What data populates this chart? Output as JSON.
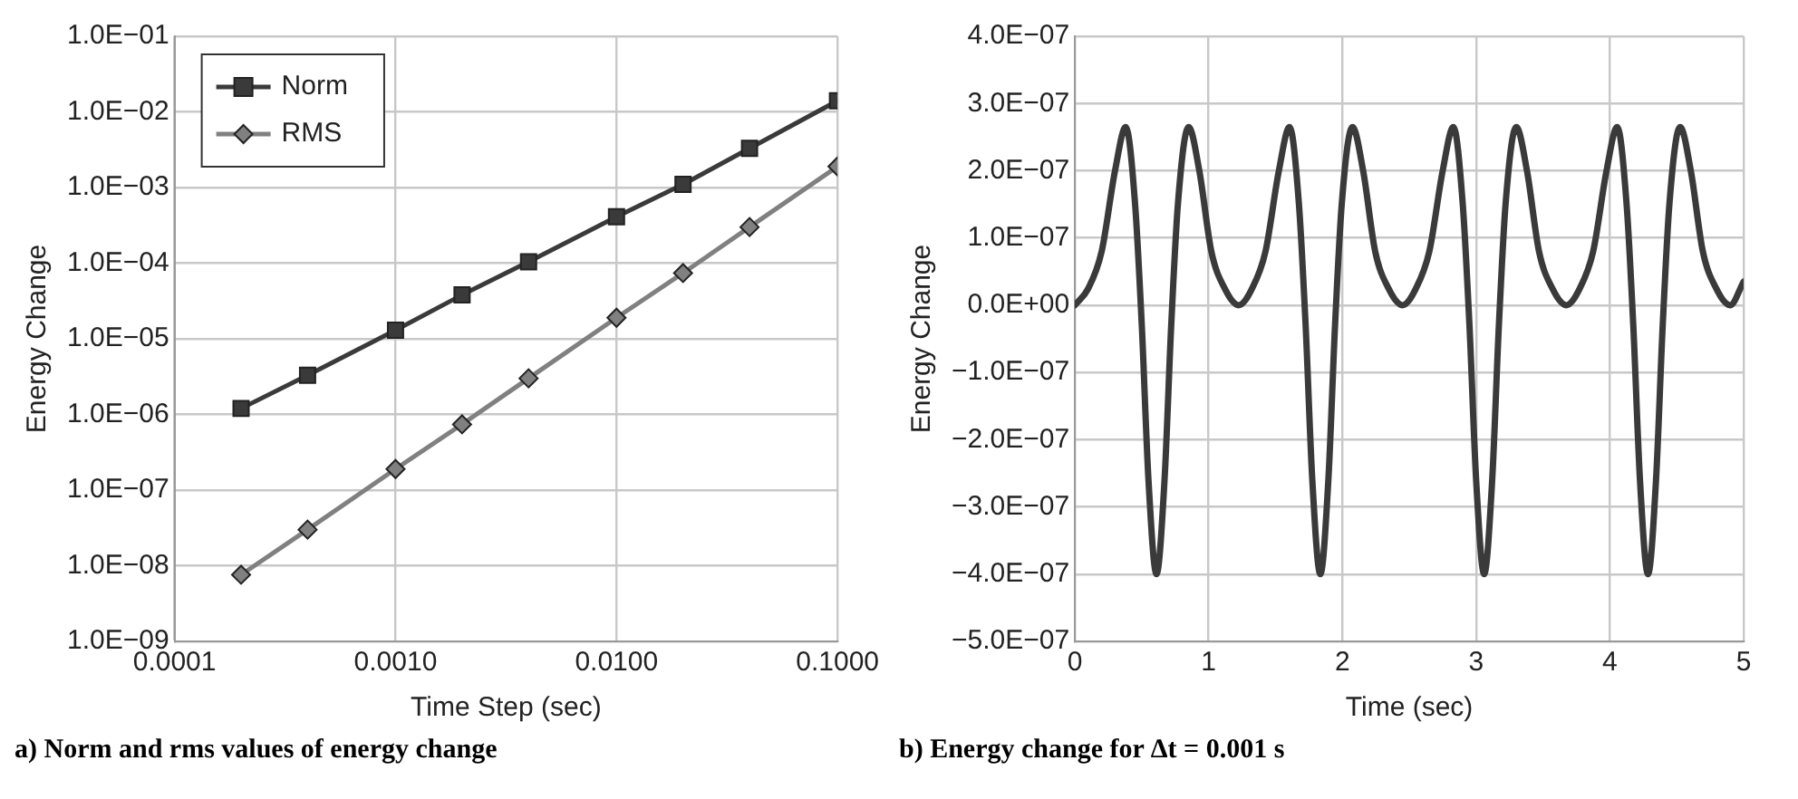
{
  "chart_data": [
    {
      "type": "line",
      "xlabel": "Time Step (sec)",
      "ylabel": "Energy Change",
      "log": "xy",
      "grid": true,
      "legend": "top left",
      "xlim": [
        0.0001,
        0.1
      ],
      "xticks": [
        {
          "value": 0.0001,
          "label": "0.0001"
        },
        {
          "value": 0.001,
          "label": "0.0010"
        },
        {
          "value": 0.01,
          "label": "0.0100"
        },
        {
          "value": 0.1,
          "label": "0.1000"
        }
      ],
      "ylim": [
        1e-09,
        0.1
      ],
      "yticks": [
        {
          "value": 1e-09,
          "label": "1.0E−09"
        },
        {
          "value": 1e-08,
          "label": "1.0E−08"
        },
        {
          "value": 1e-07,
          "label": "1.0E−07"
        },
        {
          "value": 1e-06,
          "label": "1.0E−06"
        },
        {
          "value": 1e-05,
          "label": "1.0E−05"
        },
        {
          "value": 0.0001,
          "label": "1.0E−04"
        },
        {
          "value": 0.001,
          "label": "1.0E−03"
        },
        {
          "value": 0.01,
          "label": "1.0E−02"
        },
        {
          "value": 0.1,
          "label": "1.0E−01"
        }
      ],
      "x": [
        0.0002,
        0.0004,
        0.001,
        0.002,
        0.004,
        0.01,
        0.02,
        0.04,
        0.1
      ],
      "series": [
        {
          "name": "Norm",
          "color": "#3a3a3a",
          "marker": "square",
          "values": [
            1.2e-06,
            3.3e-06,
            1.3e-05,
            3.8e-05,
            0.000104,
            0.00041,
            0.0011,
            0.0033,
            0.014
          ]
        },
        {
          "name": "RMS",
          "color": "#808080",
          "marker": "diamond",
          "values": [
            7.6e-09,
            3e-08,
            1.9e-07,
            7.4e-07,
            3e-06,
            1.9e-05,
            7.4e-05,
            0.0003,
            0.0019
          ]
        }
      ],
      "annotations": [
        "a) Norm and rms values of energy change"
      ]
    },
    {
      "type": "line",
      "xlabel": "Time (sec)",
      "ylabel": "Energy Change",
      "grid": true,
      "marker": "none",
      "xlim": [
        0,
        5
      ],
      "xticks": [
        0,
        1,
        2,
        3,
        4,
        5
      ],
      "ylim": [
        -5e-07,
        4e-07
      ],
      "yticks": [
        {
          "value": -5e-07,
          "label": "−5.0E−07"
        },
        {
          "value": -4e-07,
          "label": "−4.0E−07"
        },
        {
          "value": -3e-07,
          "label": "−3.0E−07"
        },
        {
          "value": -2e-07,
          "label": "−2.0E−07"
        },
        {
          "value": -1e-07,
          "label": "−1.0E−07"
        },
        {
          "value": 0,
          "label": "0.0E+00"
        },
        {
          "value": 1e-07,
          "label": "1.0E−07"
        },
        {
          "value": 2e-07,
          "label": "2.0E−07"
        },
        {
          "value": 3e-07,
          "label": "3.0E−07"
        },
        {
          "value": 4e-07,
          "label": "4.0E−07"
        }
      ],
      "x": [
        0,
        0.1,
        0.2,
        0.3,
        0.38,
        0.45,
        0.5,
        0.55,
        0.61,
        0.67,
        0.72,
        0.77,
        0.85,
        0.93,
        1.02,
        1.12,
        1.225,
        1.325,
        1.425,
        1.525,
        1.605,
        1.675,
        1.725,
        1.775,
        1.835,
        1.895,
        1.945,
        1.995,
        2.075,
        2.155,
        2.245,
        2.345,
        2.45,
        2.55,
        2.65,
        2.75,
        2.83,
        2.9,
        2.95,
        3.0,
        3.06,
        3.12,
        3.17,
        3.22,
        3.3,
        3.38,
        3.47,
        3.57,
        3.675,
        3.775,
        3.875,
        3.975,
        4.055,
        4.125,
        4.175,
        4.225,
        4.285,
        4.345,
        4.395,
        4.445,
        4.525,
        4.605,
        4.695,
        4.795,
        4.9,
        5.0
      ],
      "series": [
        {
          "color": "#3a3a3a",
          "values": [
            0,
            2.5e-08,
            8e-08,
            2e-07,
            2.65e-07,
            1.5e-07,
            -3e-08,
            -2.6e-07,
            -4e-07,
            -2.6e-07,
            -3e-08,
            1.5e-07,
            2.65e-07,
            2e-07,
            8e-08,
            2.5e-08,
            0,
            2.5e-08,
            8e-08,
            2e-07,
            2.65e-07,
            1.5e-07,
            -3e-08,
            -2.6e-07,
            -4e-07,
            -2.6e-07,
            -3e-08,
            1.5e-07,
            2.65e-07,
            2e-07,
            8e-08,
            2.5e-08,
            0,
            2.5e-08,
            8e-08,
            2e-07,
            2.65e-07,
            1.5e-07,
            -3e-08,
            -2.6e-07,
            -4e-07,
            -2.6e-07,
            -3e-08,
            1.5e-07,
            2.65e-07,
            2e-07,
            8e-08,
            2.5e-08,
            0,
            2.5e-08,
            8e-08,
            2e-07,
            2.65e-07,
            1.5e-07,
            -3e-08,
            -2.6e-07,
            -4e-07,
            -2.6e-07,
            -3e-08,
            1.5e-07,
            2.65e-07,
            2e-07,
            8e-08,
            2.5e-08,
            0,
            3.5e-08
          ]
        }
      ],
      "annotations": [
        "b) Energy change for Δt = 0.001 s"
      ]
    }
  ]
}
